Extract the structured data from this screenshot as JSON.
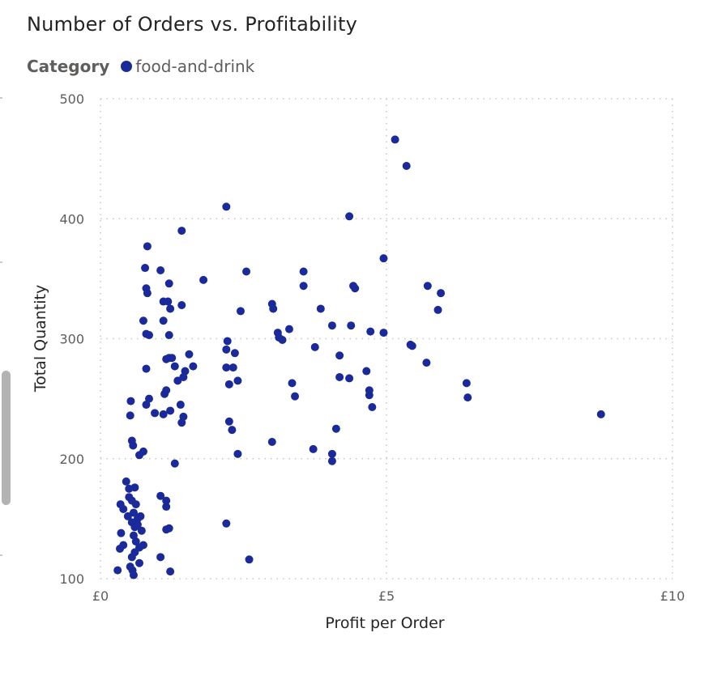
{
  "visual": {
    "title": "Number of Orders vs. Profitability",
    "legend": {
      "title": "Category",
      "items": [
        {
          "label": "food-and-drink",
          "color": "#1a2a9a"
        }
      ]
    }
  },
  "chart_data": {
    "type": "scatter",
    "title": "Number of Orders vs. Profitability",
    "xlabel": "Profit per Order",
    "ylabel": "Total Quantity",
    "xlim": [
      0,
      10
    ],
    "ylim": [
      100,
      500
    ],
    "x_ticks": [
      {
        "value": 0,
        "label": "£0"
      },
      {
        "value": 5,
        "label": "£5"
      },
      {
        "value": 10,
        "label": "£10"
      }
    ],
    "y_ticks": [
      {
        "value": 100,
        "label": "100"
      },
      {
        "value": 200,
        "label": "200"
      },
      {
        "value": 300,
        "label": "300"
      },
      {
        "value": 400,
        "label": "400"
      },
      {
        "value": 500,
        "label": "500"
      }
    ],
    "grid": true,
    "legend_position": "top-left",
    "series": [
      {
        "name": "food-and-drink",
        "color": "#1a2a9a",
        "points": [
          [
            0.3,
            107
          ],
          [
            0.36,
            138
          ],
          [
            0.34,
            125
          ],
          [
            0.4,
            158
          ],
          [
            0.45,
            181
          ],
          [
            0.5,
            175
          ],
          [
            0.5,
            168
          ],
          [
            0.55,
            165
          ],
          [
            0.6,
            176
          ],
          [
            0.58,
            155
          ],
          [
            0.62,
            162
          ],
          [
            0.65,
            150
          ],
          [
            0.55,
            147
          ],
          [
            0.6,
            143
          ],
          [
            0.65,
            145
          ],
          [
            0.58,
            136
          ],
          [
            0.62,
            131
          ],
          [
            0.68,
            126
          ],
          [
            0.72,
            140
          ],
          [
            0.75,
            128
          ],
          [
            0.55,
            118
          ],
          [
            0.6,
            122
          ],
          [
            0.68,
            113
          ],
          [
            0.52,
            110
          ],
          [
            0.58,
            103
          ],
          [
            0.7,
            152
          ],
          [
            0.48,
            152
          ],
          [
            0.35,
            162
          ],
          [
            0.4,
            128
          ],
          [
            0.56,
            107
          ],
          [
            0.55,
            215
          ],
          [
            0.57,
            211
          ],
          [
            0.52,
            236
          ],
          [
            0.53,
            248
          ],
          [
            0.68,
            203
          ],
          [
            0.75,
            206
          ],
          [
            0.8,
            245
          ],
          [
            0.85,
            250
          ],
          [
            0.8,
            275
          ],
          [
            0.8,
            304
          ],
          [
            0.85,
            303
          ],
          [
            0.75,
            315
          ],
          [
            0.82,
            338
          ],
          [
            0.8,
            342
          ],
          [
            0.78,
            359
          ],
          [
            0.82,
            377
          ],
          [
            0.95,
            238
          ],
          [
            1.1,
            237
          ],
          [
            1.12,
            254
          ],
          [
            1.15,
            257
          ],
          [
            1.2,
            284
          ],
          [
            1.15,
            283
          ],
          [
            1.22,
            240
          ],
          [
            1.3,
            196
          ],
          [
            1.05,
            169
          ],
          [
            1.15,
            165
          ],
          [
            1.15,
            160
          ],
          [
            1.15,
            141
          ],
          [
            1.2,
            142
          ],
          [
            1.05,
            118
          ],
          [
            1.22,
            106
          ],
          [
            1.05,
            357
          ],
          [
            1.2,
            346
          ],
          [
            1.1,
            331
          ],
          [
            1.18,
            331
          ],
          [
            1.22,
            325
          ],
          [
            1.1,
            315
          ],
          [
            1.2,
            303
          ],
          [
            1.25,
            284
          ],
          [
            1.3,
            277
          ],
          [
            1.35,
            265
          ],
          [
            1.4,
            245
          ],
          [
            1.42,
            230
          ],
          [
            1.45,
            235
          ],
          [
            1.45,
            268
          ],
          [
            1.48,
            273
          ],
          [
            1.55,
            287
          ],
          [
            1.62,
            277
          ],
          [
            1.42,
            328
          ],
          [
            1.42,
            390
          ],
          [
            1.8,
            349
          ],
          [
            2.2,
            410
          ],
          [
            2.2,
            291
          ],
          [
            2.2,
            276
          ],
          [
            2.22,
            298
          ],
          [
            2.25,
            262
          ],
          [
            2.25,
            231
          ],
          [
            2.3,
            224
          ],
          [
            2.32,
            276
          ],
          [
            2.35,
            288
          ],
          [
            2.4,
            265
          ],
          [
            2.4,
            204
          ],
          [
            2.45,
            323
          ],
          [
            2.55,
            356
          ],
          [
            2.6,
            116
          ],
          [
            2.2,
            146
          ],
          [
            3.0,
            214
          ],
          [
            3.0,
            329
          ],
          [
            3.02,
            325
          ],
          [
            3.1,
            305
          ],
          [
            3.12,
            301
          ],
          [
            3.18,
            299
          ],
          [
            3.3,
            308
          ],
          [
            3.35,
            263
          ],
          [
            3.4,
            252
          ],
          [
            3.55,
            356
          ],
          [
            3.55,
            344
          ],
          [
            3.75,
            293
          ],
          [
            3.72,
            208
          ],
          [
            3.85,
            325
          ],
          [
            4.05,
            204
          ],
          [
            4.05,
            198
          ],
          [
            4.05,
            311
          ],
          [
            4.12,
            225
          ],
          [
            4.18,
            286
          ],
          [
            4.18,
            268
          ],
          [
            4.35,
            402
          ],
          [
            4.35,
            267
          ],
          [
            4.38,
            311
          ],
          [
            4.42,
            344
          ],
          [
            4.45,
            342
          ],
          [
            4.65,
            273
          ],
          [
            4.7,
            257
          ],
          [
            4.7,
            253
          ],
          [
            4.72,
            306
          ],
          [
            4.75,
            243
          ],
          [
            4.95,
            305
          ],
          [
            4.95,
            367
          ],
          [
            5.15,
            466
          ],
          [
            5.35,
            444
          ],
          [
            5.42,
            295
          ],
          [
            5.45,
            294
          ],
          [
            5.7,
            280
          ],
          [
            5.72,
            344
          ],
          [
            5.9,
            324
          ],
          [
            5.95,
            338
          ],
          [
            6.4,
            263
          ],
          [
            6.42,
            251
          ],
          [
            8.75,
            237
          ]
        ]
      }
    ]
  }
}
